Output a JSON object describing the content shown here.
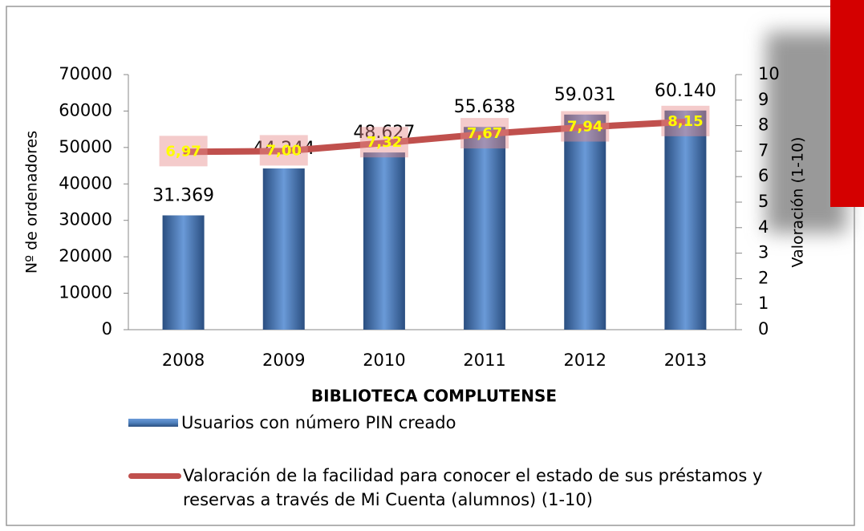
{
  "chart_data": {
    "type": "bar_line",
    "categories": [
      "2008",
      "2009",
      "2010",
      "2011",
      "2012",
      "2013"
    ],
    "series": [
      {
        "name": "Usuarios con número PIN creado",
        "type": "bar",
        "color": "#4f81bd",
        "values": [
          31369,
          44244,
          48627,
          55638,
          59031,
          60140
        ],
        "value_labels": [
          "31.369",
          "44.244",
          "48.627",
          "55.638",
          "59.031",
          "60.140"
        ]
      },
      {
        "name": "Valoración de la facilidad para conocer el estado de sus préstamos y reservas a través de Mi Cuenta (alumnos) (1-10)",
        "type": "line",
        "axis": "y2",
        "color": "#c0504d",
        "values": [
          6.97,
          7.0,
          7.32,
          7.67,
          7.94,
          8.15
        ],
        "value_labels": [
          "6,97",
          "7,00",
          "7,32",
          "7,67",
          "7,94",
          "8,15"
        ]
      }
    ],
    "xlabel": "BIBLIOTECA COMPLUTENSE",
    "ylabel": "Nº de ordenadores",
    "y2label": "Valoración (1-10)",
    "ylim": [
      0,
      70000
    ],
    "yticks": [
      0,
      10000,
      20000,
      30000,
      40000,
      50000,
      60000,
      70000
    ],
    "y2lim": [
      0,
      10
    ],
    "y2ticks": [
      0,
      1,
      2,
      3,
      4,
      5,
      6,
      7,
      8,
      9,
      10
    ]
  }
}
